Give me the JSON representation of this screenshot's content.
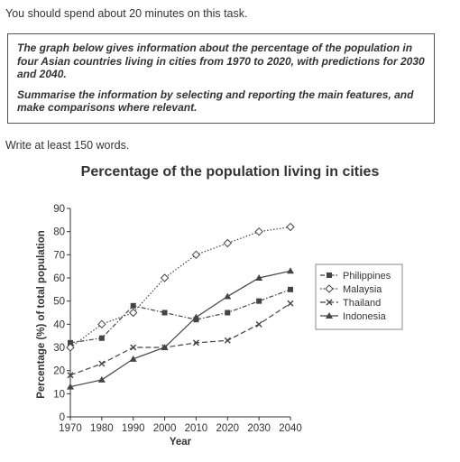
{
  "intro": "You should spend about 20 minutes on this task.",
  "task": {
    "paragraph1": "The graph below gives information about the percentage of the population in four Asian countries living in cities from 1970 to 2020, with predictions for 2030 and 2040.",
    "paragraph2": "Summarise the information by selecting and reporting the main features, and make comparisons where relevant."
  },
  "word_instruction": "Write at least 150 words.",
  "chart_data": {
    "type": "line",
    "title": "Percentage of the population living in cities",
    "xlabel": "Year",
    "ylabel": "Percentage (%) of total population",
    "x": [
      1970,
      1980,
      1990,
      2000,
      2010,
      2020,
      2030,
      2040
    ],
    "ylim": [
      0,
      90
    ],
    "yticks": [
      0,
      10,
      20,
      30,
      40,
      50,
      60,
      70,
      80,
      90
    ],
    "grid": false,
    "legend_position": "right",
    "series": [
      {
        "name": "Philippines",
        "marker": "square",
        "dash": "dash-dot",
        "values": [
          32,
          34,
          48,
          45,
          42,
          45,
          50,
          55
        ]
      },
      {
        "name": "Malaysia",
        "marker": "diamond-open",
        "dash": "dotted",
        "values": [
          30,
          40,
          45,
          60,
          70,
          75,
          80,
          82
        ]
      },
      {
        "name": "Thailand",
        "marker": "cross",
        "dash": "dashed",
        "values": [
          18,
          23,
          30,
          30,
          32,
          33,
          40,
          49
        ]
      },
      {
        "name": "Indonesia",
        "marker": "triangle",
        "dash": "solid",
        "values": [
          13,
          16,
          25,
          30,
          43,
          52,
          60,
          63
        ]
      }
    ]
  }
}
